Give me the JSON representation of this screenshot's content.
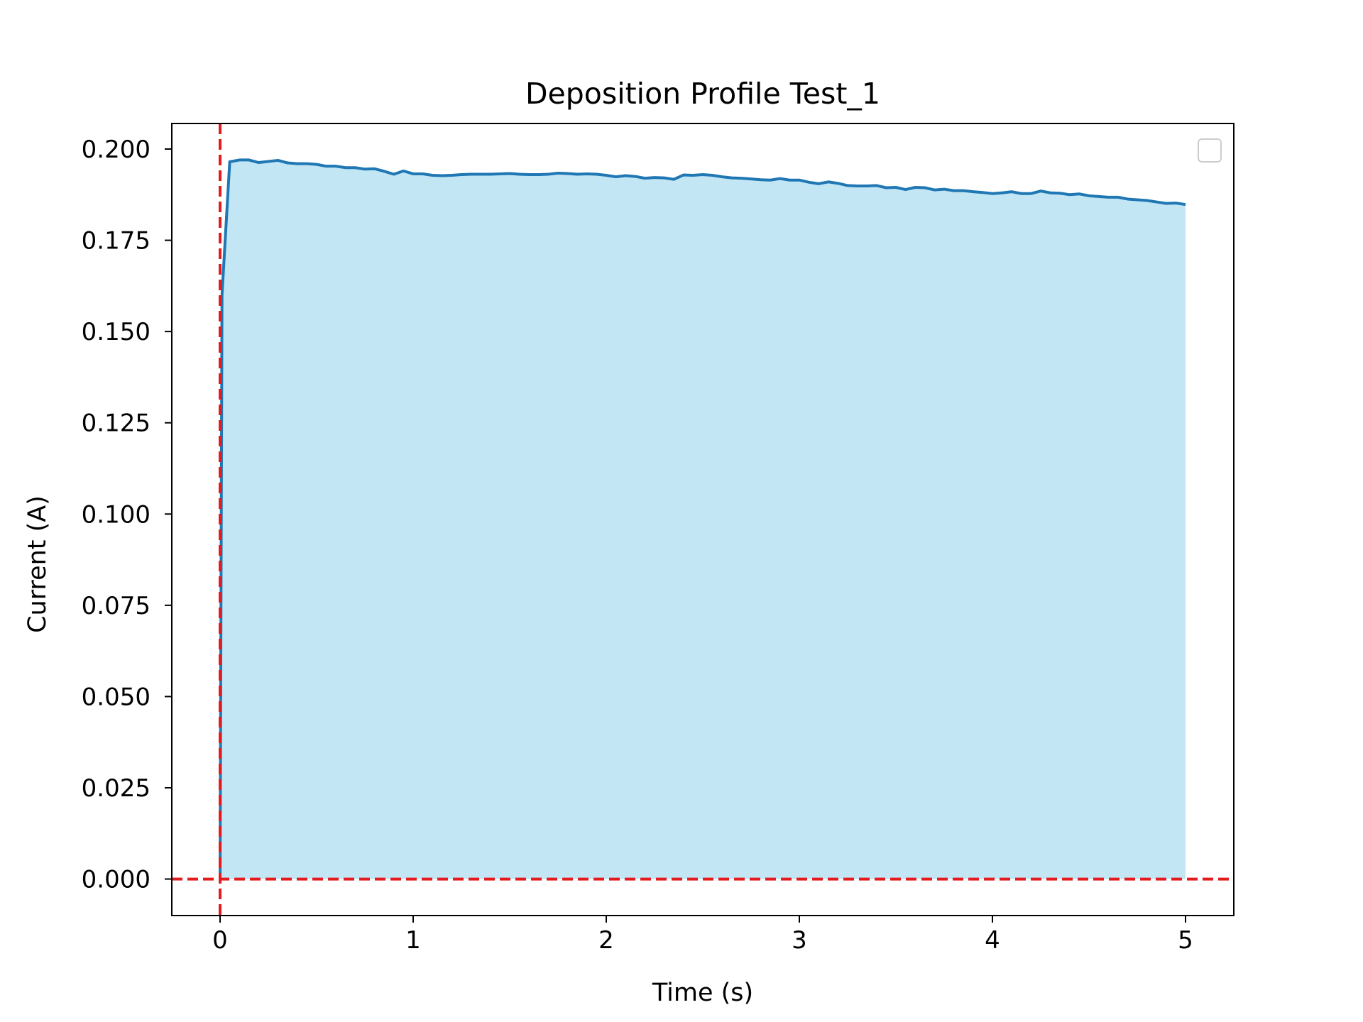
{
  "chart_data": {
    "type": "area",
    "title": "Deposition Profile Test_1",
    "xlabel": "Time (s)",
    "ylabel": "Current (A)",
    "xlim": [
      -0.25,
      5.25
    ],
    "ylim": [
      -0.01,
      0.207
    ],
    "xticks": [
      0,
      1,
      2,
      3,
      4,
      5
    ],
    "xtick_labels": [
      "0",
      "1",
      "2",
      "3",
      "4",
      "5"
    ],
    "yticks": [
      0,
      0.025,
      0.05,
      0.075,
      0.1,
      0.125,
      0.15,
      0.175,
      0.2
    ],
    "ytick_labels": [
      "0.000",
      "0.025",
      "0.050",
      "0.075",
      "0.100",
      "0.125",
      "0.150",
      "0.175",
      "0.200"
    ],
    "grid": false,
    "legend": {
      "placement": "upper right",
      "entries": []
    },
    "reference_lines": [
      {
        "orientation": "vertical",
        "value": 0,
        "style": "dashed",
        "color": "#e41a1c"
      },
      {
        "orientation": "horizontal",
        "value": 0,
        "style": "dashed",
        "color": "#e41a1c"
      }
    ],
    "line_color": "#1f77b4",
    "fill_color": "#87ceeb",
    "series": [
      {
        "x": [
          0,
          0.01,
          0.05,
          0.1,
          0.15,
          0.2,
          0.25,
          0.3,
          0.35,
          0.4,
          0.45,
          0.5,
          0.55,
          0.6,
          0.65,
          0.7,
          0.75,
          0.8,
          0.85,
          0.9,
          0.95,
          1.0,
          1.05,
          1.1,
          1.15,
          1.2,
          1.25,
          1.3,
          1.35,
          1.4,
          1.45,
          1.5,
          1.55,
          1.6,
          1.65,
          1.7,
          1.75,
          1.8,
          1.85,
          1.9,
          1.95,
          2.0,
          2.05,
          2.1,
          2.15,
          2.2,
          2.25,
          2.3,
          2.35,
          2.4,
          2.45,
          2.5,
          2.55,
          2.6,
          2.65,
          2.7,
          2.75,
          2.8,
          2.85,
          2.9,
          2.95,
          3.0,
          3.05,
          3.1,
          3.15,
          3.2,
          3.25,
          3.3,
          3.35,
          3.4,
          3.45,
          3.5,
          3.55,
          3.6,
          3.65,
          3.7,
          3.75,
          3.8,
          3.85,
          3.9,
          3.95,
          4.0,
          4.05,
          4.1,
          4.15,
          4.2,
          4.25,
          4.3,
          4.35,
          4.4,
          4.45,
          4.5,
          4.55,
          4.6,
          4.65,
          4.7,
          4.75,
          4.8,
          4.85,
          4.9,
          4.95,
          5.0
        ],
        "y": [
          0.0,
          0.16,
          0.1965,
          0.197,
          0.197,
          0.1963,
          0.1966,
          0.1969,
          0.1962,
          0.196,
          0.196,
          0.1958,
          0.1953,
          0.1953,
          0.1949,
          0.1949,
          0.1945,
          0.1946,
          0.1939,
          0.1931,
          0.194,
          0.1932,
          0.1932,
          0.1928,
          0.1927,
          0.1928,
          0.193,
          0.1931,
          0.1931,
          0.1931,
          0.1932,
          0.1933,
          0.1931,
          0.193,
          0.193,
          0.1931,
          0.1934,
          0.1933,
          0.1931,
          0.1932,
          0.1931,
          0.1928,
          0.1924,
          0.1927,
          0.1925,
          0.192,
          0.1922,
          0.1921,
          0.1917,
          0.1929,
          0.1928,
          0.193,
          0.1928,
          0.1924,
          0.1921,
          0.192,
          0.1918,
          0.1916,
          0.1915,
          0.1919,
          0.1915,
          0.1915,
          0.1909,
          0.1905,
          0.191,
          0.1906,
          0.19,
          0.1899,
          0.1899,
          0.19,
          0.1894,
          0.1895,
          0.1889,
          0.1895,
          0.1894,
          0.1888,
          0.189,
          0.1886,
          0.1886,
          0.1883,
          0.1881,
          0.1878,
          0.188,
          0.1883,
          0.1878,
          0.1878,
          0.1885,
          0.188,
          0.1879,
          0.1875,
          0.1877,
          0.1872,
          0.187,
          0.1868,
          0.1868,
          0.1863,
          0.1861,
          0.1859,
          0.1855,
          0.1851,
          0.1852,
          0.1848
        ]
      }
    ]
  }
}
